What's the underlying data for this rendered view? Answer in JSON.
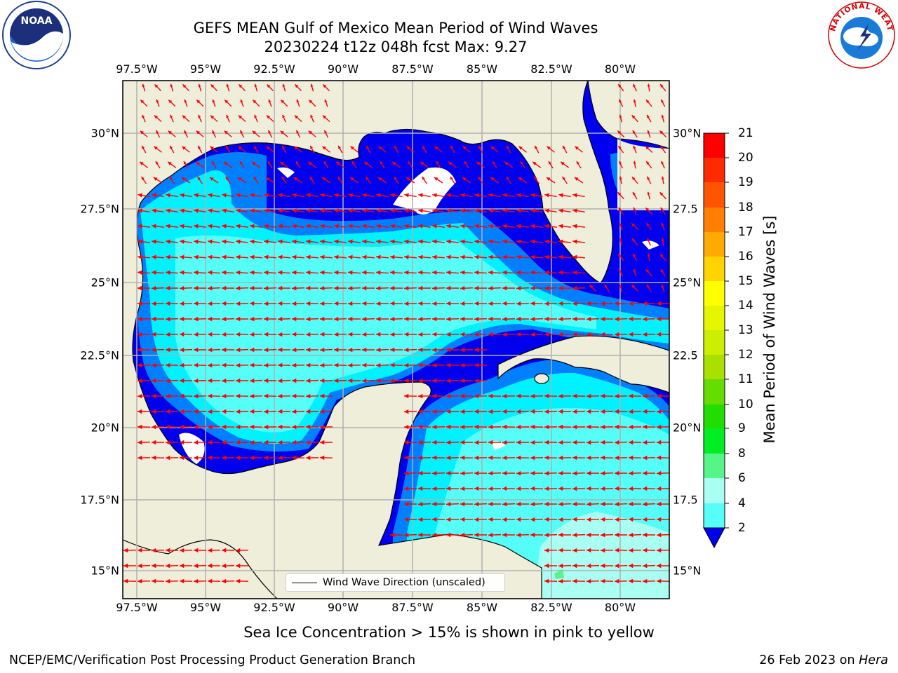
{
  "header": {
    "title_line1": "GEFS MEAN Gulf of Mexico Mean Period of Wind Waves",
    "title_line2": "20230224 t12z 048h fcst   Max: 9.27"
  },
  "axes": {
    "lon_ticks": [
      "97.5°W",
      "95°W",
      "92.5°W",
      "90°W",
      "87.5°W",
      "85°W",
      "82.5°W",
      "80°W"
    ],
    "lat_ticks_left": [
      "30°N",
      "27.5°N",
      "25°N",
      "22.5°N",
      "20°N",
      "17.5°N",
      "15°N"
    ],
    "lat_ticks_right": [
      "30°N",
      "27.5",
      "25°N",
      "22.5",
      "20°N",
      "17.5",
      "15°N"
    ]
  },
  "colorbar": {
    "label": "Mean Period of Wind Waves [s]",
    "ticks": [
      "21",
      "20",
      "19",
      "18",
      "17",
      "16",
      "15",
      "14",
      "13",
      "12",
      "11",
      "10",
      "9",
      "8",
      "6",
      "4",
      "2"
    ],
    "colors": [
      "#ff0000",
      "#ff2b00",
      "#ff5500",
      "#ff8000",
      "#ffaa00",
      "#ffd400",
      "#ffff00",
      "#e6f500",
      "#ccee00",
      "#aae000",
      "#66dd00",
      "#22dd00",
      "#00ee22",
      "#55f58a",
      "#a8fff2",
      "#55fff8",
      "#00f2ff",
      "#0080ff"
    ],
    "under_color": "#0000ee"
  },
  "legend": {
    "label": "Wind Wave Direction (unscaled)"
  },
  "footer": {
    "note": "Sea Ice Concentration > 15% is shown in pink to yellow",
    "credit": "NCEP/EMC/Verification Post Processing Product Generation Branch",
    "date": "26 Feb 2023 on",
    "host": "Hera"
  },
  "logos": {
    "left": "NOAA",
    "right": "NATIONAL WEATHER SERVICE"
  },
  "colors": {
    "land": "#efeedb",
    "wave_low": "#0000ee",
    "wave_2_4": "#0080ff",
    "wave_4_6": "#00f2ff",
    "wave_6_8": "#55fff8",
    "wave_8_9": "#a8fff2",
    "arrow": "#ff0000",
    "grid": "#b0b0b0"
  }
}
